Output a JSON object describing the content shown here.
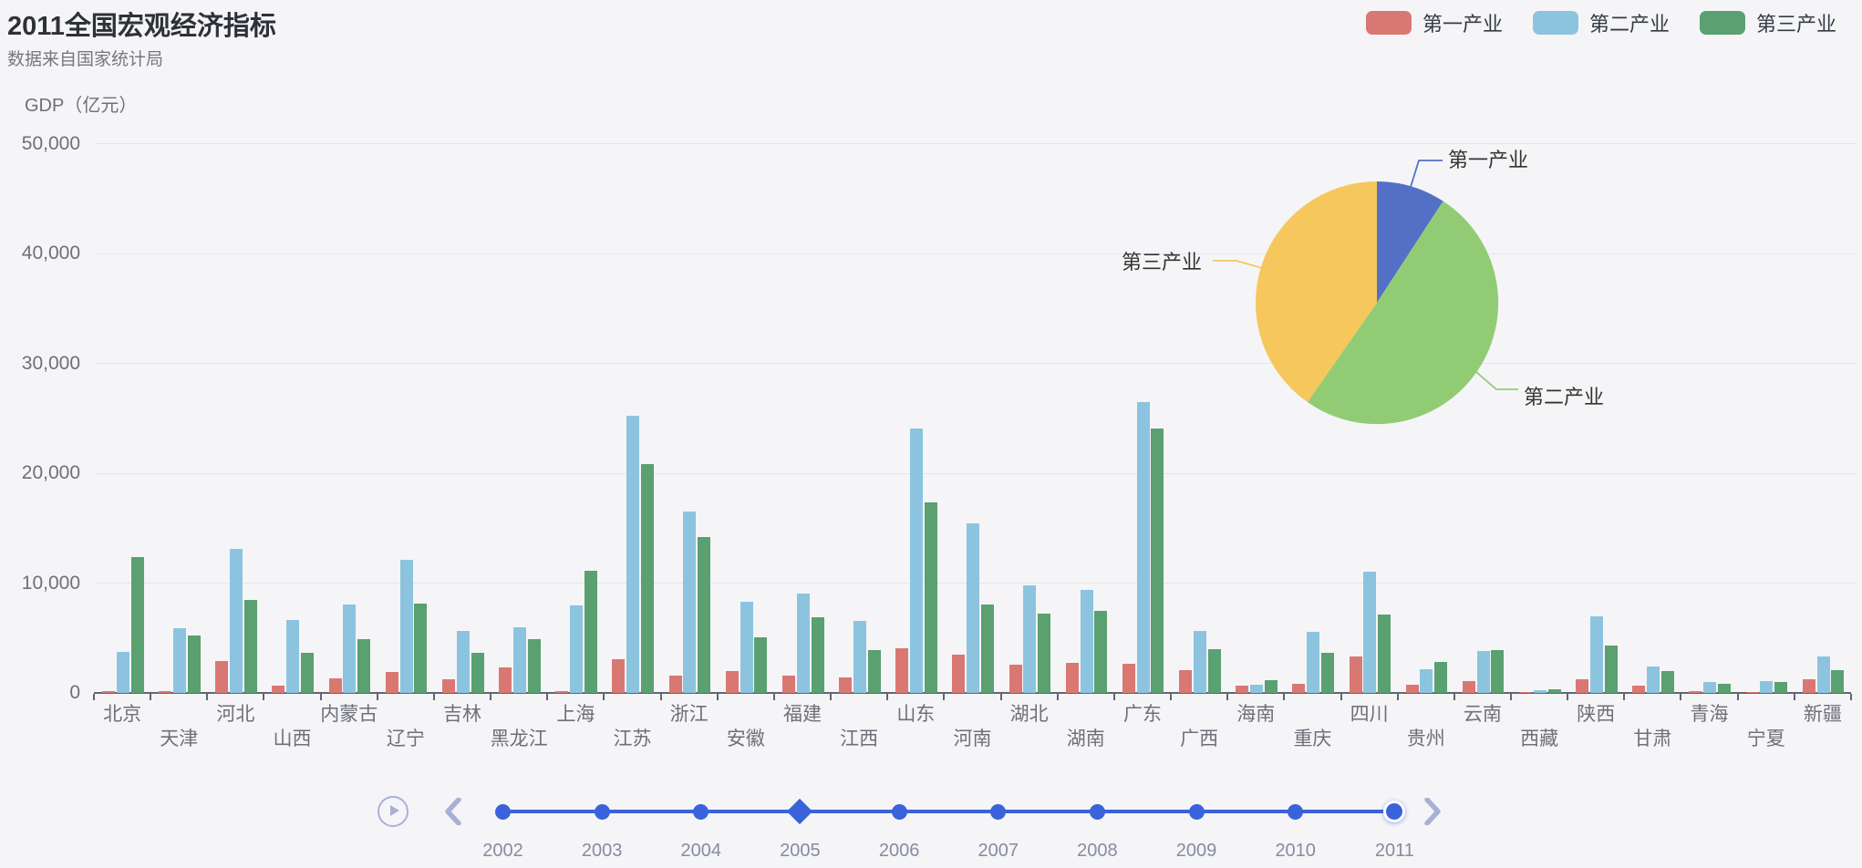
{
  "title": "2011全国宏观经济指标",
  "subtitle": "数据来自国家统计局",
  "legend": {
    "items": [
      {
        "label": "第一产业",
        "color": "#D97873"
      },
      {
        "label": "第二产业",
        "color": "#8CC4E0"
      },
      {
        "label": "第三产业",
        "color": "#5AA070"
      }
    ]
  },
  "y_axis": {
    "name": "GDP（亿元）",
    "ticks": [
      "0",
      "10,000",
      "20,000",
      "30,000",
      "40,000",
      "50,000"
    ]
  },
  "chart_data": [
    {
      "type": "bar",
      "title": "2011全国宏观经济指标",
      "subtitle": "数据来自国家统计局",
      "xlabel": "",
      "ylabel": "GDP（亿元）",
      "ylim": [
        0,
        50000
      ],
      "ytick_interval": 10000,
      "grid": true,
      "legend_position": "top-right",
      "categories": [
        "北京",
        "天津",
        "河北",
        "山西",
        "内蒙古",
        "辽宁",
        "吉林",
        "黑龙江",
        "上海",
        "江苏",
        "浙江",
        "安徽",
        "福建",
        "江西",
        "山东",
        "河南",
        "湖北",
        "湖南",
        "广东",
        "广西",
        "海南",
        "重庆",
        "四川",
        "贵州",
        "云南",
        "西藏",
        "陕西",
        "甘肃",
        "青海",
        "宁夏",
        "新疆"
      ],
      "series": [
        {
          "name": "第一产业",
          "color": "#D97873",
          "values": [
            136.27,
            159.72,
            2905.73,
            641.42,
            1306.3,
            1915.57,
            1277.44,
            2363.6,
            124.94,
            3064.78,
            1583.04,
            2015.31,
            1612.24,
            1391.07,
            4089.6,
            3512.24,
            2569.3,
            2768.03,
            2665.2,
            2047.23,
            659.23,
            844.52,
            3309.35,
            726.22,
            1078.14,
            80.42,
            1220.9,
            678.75,
            155.07,
            89.98,
            1259.01
          ]
        },
        {
          "name": "第二产业",
          "color": "#8CC4E0",
          "values": [
            3752.48,
            5928.32,
            13126.86,
            6635.26,
            8037.69,
            12152.15,
            5611.48,
            5962.41,
            7927.89,
            25203.28,
            16555.58,
            8309.38,
            9069.2,
            6592.61,
            24037.37,
            15427.08,
            9815.8,
            9361.99,
            26447.79,
            5675.32,
            714.5,
            5543.04,
            11029.13,
            2194.33,
            3780.32,
            208.79,
            6935.59,
            2377.83,
            976.2,
            1056.6,
            3310.15
          ]
        },
        {
          "name": "第三产业",
          "color": "#5AA070",
          "values": [
            12363.18,
            5219.24,
            8483.17,
            3686.86,
            4893.42,
            8158.98,
            3679.05,
            4858.84,
            11142.86,
            20842.21,
            14180.23,
            5100.57,
            6854.55,
            3915.64,
            17370.92,
            8072.57,
            7247.1,
            7476.5,
            24097.7,
            4013.66,
            1134.96,
            3620.89,
            7171.82,
            2838.49,
            3871.22,
            316.83,
            4341.7,
            1958.56,
            804.18,
            956.26,
            2043.83
          ]
        }
      ]
    },
    {
      "type": "pie",
      "start_angle_deg": 90,
      "clockwise": true,
      "slices": [
        {
          "name": "第一产业",
          "percent": 9.2,
          "color": "#5470C6"
        },
        {
          "name": "第二产业",
          "percent": 50.5,
          "color": "#91CC75"
        },
        {
          "name": "第三产业",
          "percent": 40.3,
          "color": "#F6C75C"
        }
      ]
    }
  ],
  "timeline": {
    "years": [
      "2002",
      "2003",
      "2004",
      "2005",
      "2006",
      "2007",
      "2008",
      "2009",
      "2010",
      "2011"
    ],
    "current_year": "2011",
    "diamond_year": "2005",
    "colors": {
      "line": "#3A63DB",
      "control": "#A9B0D8"
    }
  }
}
